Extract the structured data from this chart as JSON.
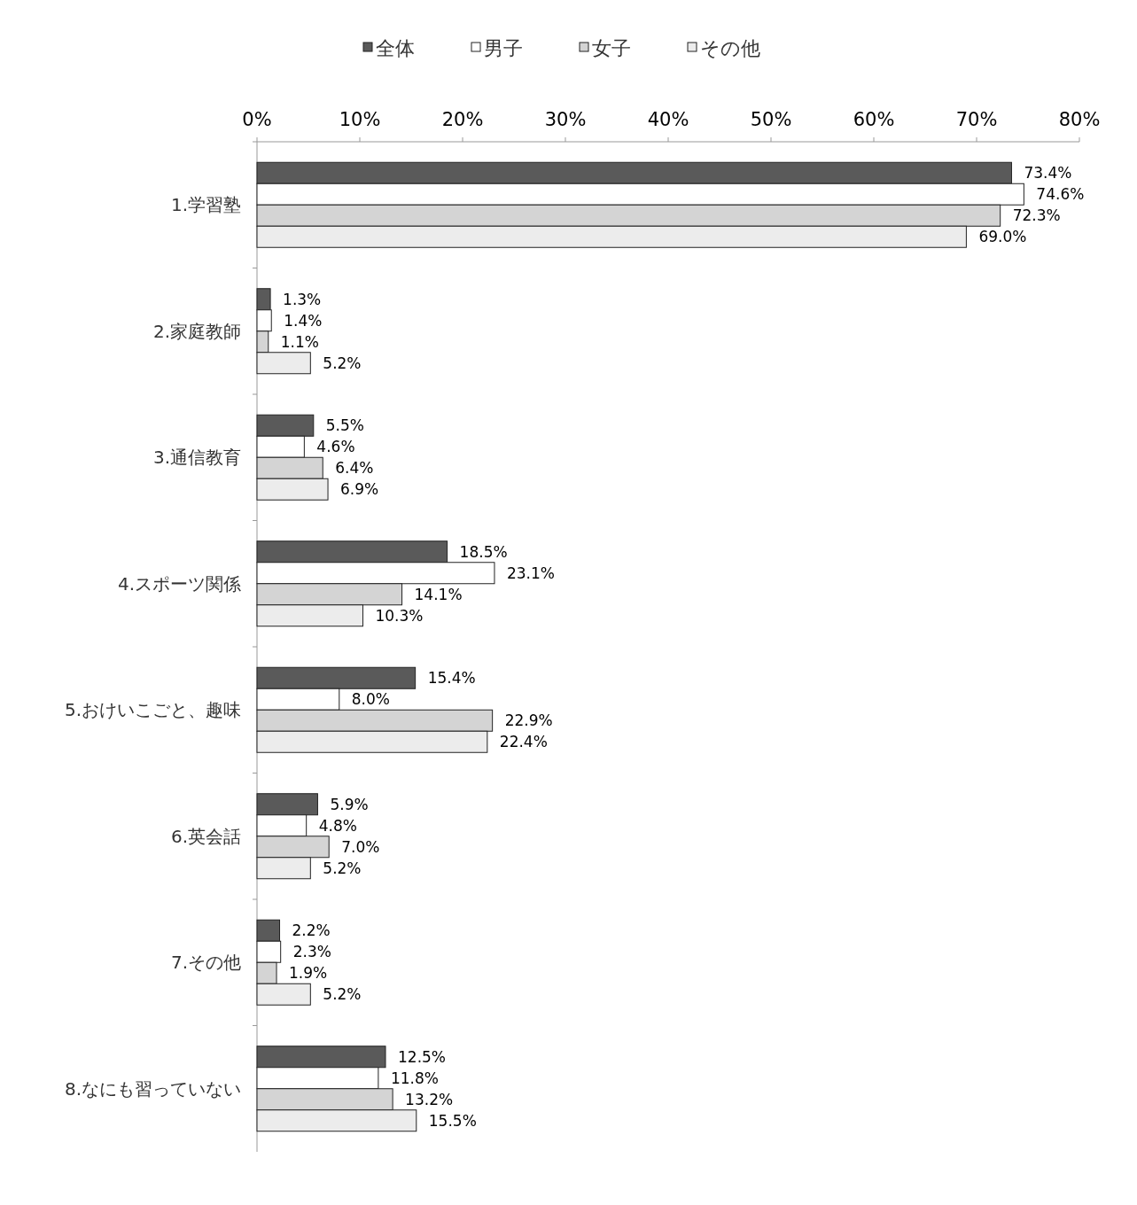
{
  "chart_data": {
    "type": "bar",
    "orientation": "horizontal",
    "legend": "top",
    "categories": [
      "1.学習塾",
      "2.家庭教師",
      "3.通信教育",
      "4.スポーツ関係",
      "5.おけいこごと、趣味",
      "6.英会話",
      "7.その他",
      "8.なにも習っていない"
    ],
    "xlim": [
      0,
      80
    ],
    "xticks": [
      {
        "value": 0,
        "label": "0%"
      },
      {
        "value": 10,
        "label": "10%"
      },
      {
        "value": 20,
        "label": "20%"
      },
      {
        "value": 30,
        "label": "30%"
      },
      {
        "value": 40,
        "label": "40%"
      },
      {
        "value": 50,
        "label": "50%"
      },
      {
        "value": 60,
        "label": "60%"
      },
      {
        "value": 70,
        "label": "70%"
      },
      {
        "value": 80,
        "label": "80%"
      }
    ],
    "series": [
      {
        "name": "全体",
        "color": "#5a5a5a",
        "values": [
          73.4,
          1.3,
          5.5,
          18.5,
          15.4,
          5.9,
          2.2,
          12.5
        ],
        "value_labels": [
          "73.4%",
          "1.3%",
          "5.5%",
          "18.5%",
          "15.4%",
          "5.9%",
          "2.2%",
          "12.5%"
        ]
      },
      {
        "name": "男子",
        "color": "#ffffff",
        "values": [
          74.6,
          1.4,
          4.6,
          23.1,
          8.0,
          4.8,
          2.3,
          11.8
        ],
        "value_labels": [
          "74.6%",
          "1.4%",
          "4.6%",
          "23.1%",
          "8.0%",
          "4.8%",
          "2.3%",
          "11.8%"
        ]
      },
      {
        "name": "女子",
        "color": "#d4d4d4",
        "values": [
          72.3,
          1.1,
          6.4,
          14.1,
          22.9,
          7.0,
          1.9,
          13.2
        ],
        "value_labels": [
          "72.3%",
          "1.1%",
          "6.4%",
          "14.1%",
          "22.9%",
          "7.0%",
          "1.9%",
          "13.2%"
        ]
      },
      {
        "name": "その他",
        "color": "#ececec",
        "values": [
          69.0,
          5.2,
          6.9,
          10.3,
          22.4,
          5.2,
          5.2,
          15.5
        ],
        "value_labels": [
          "69.0%",
          "5.2%",
          "6.9%",
          "10.3%",
          "22.4%",
          "5.2%",
          "5.2%",
          "15.5%"
        ]
      }
    ]
  }
}
